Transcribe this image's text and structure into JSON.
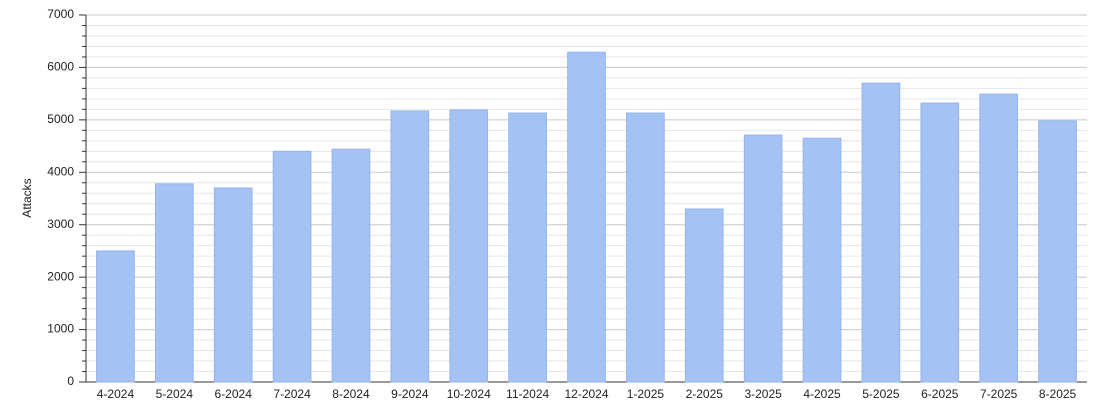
{
  "chart_data": {
    "type": "bar",
    "y_label": "Attacks",
    "categories": [
      "4-2024",
      "5-2024",
      "6-2024",
      "7-2024",
      "8-2024",
      "9-2024",
      "10-2024",
      "11-2024",
      "12-2024",
      "1-2025",
      "2-2025",
      "3-2025",
      "4-2025",
      "5-2025",
      "6-2025",
      "7-2025",
      "8-2025"
    ],
    "values": [
      2500,
      3780,
      3700,
      4400,
      4440,
      5170,
      5190,
      5130,
      6290,
      5130,
      3300,
      4710,
      4650,
      5700,
      5320,
      5490,
      4980
    ],
    "color": "#a4c2f4",
    "ylim": [
      0,
      7000
    ],
    "yticks": [
      0,
      1000,
      2000,
      3000,
      4000,
      5000,
      6000,
      7000
    ],
    "yticks_minor": [
      200,
      400,
      600,
      800,
      1200,
      1400,
      1600,
      1800,
      2200,
      2400,
      2600,
      2800,
      3200,
      3400,
      3600,
      3800,
      4200,
      4400,
      4600,
      4800,
      5200,
      5400,
      5600,
      5800,
      6200,
      6400,
      6600,
      6800
    ],
    "grid": true
  }
}
